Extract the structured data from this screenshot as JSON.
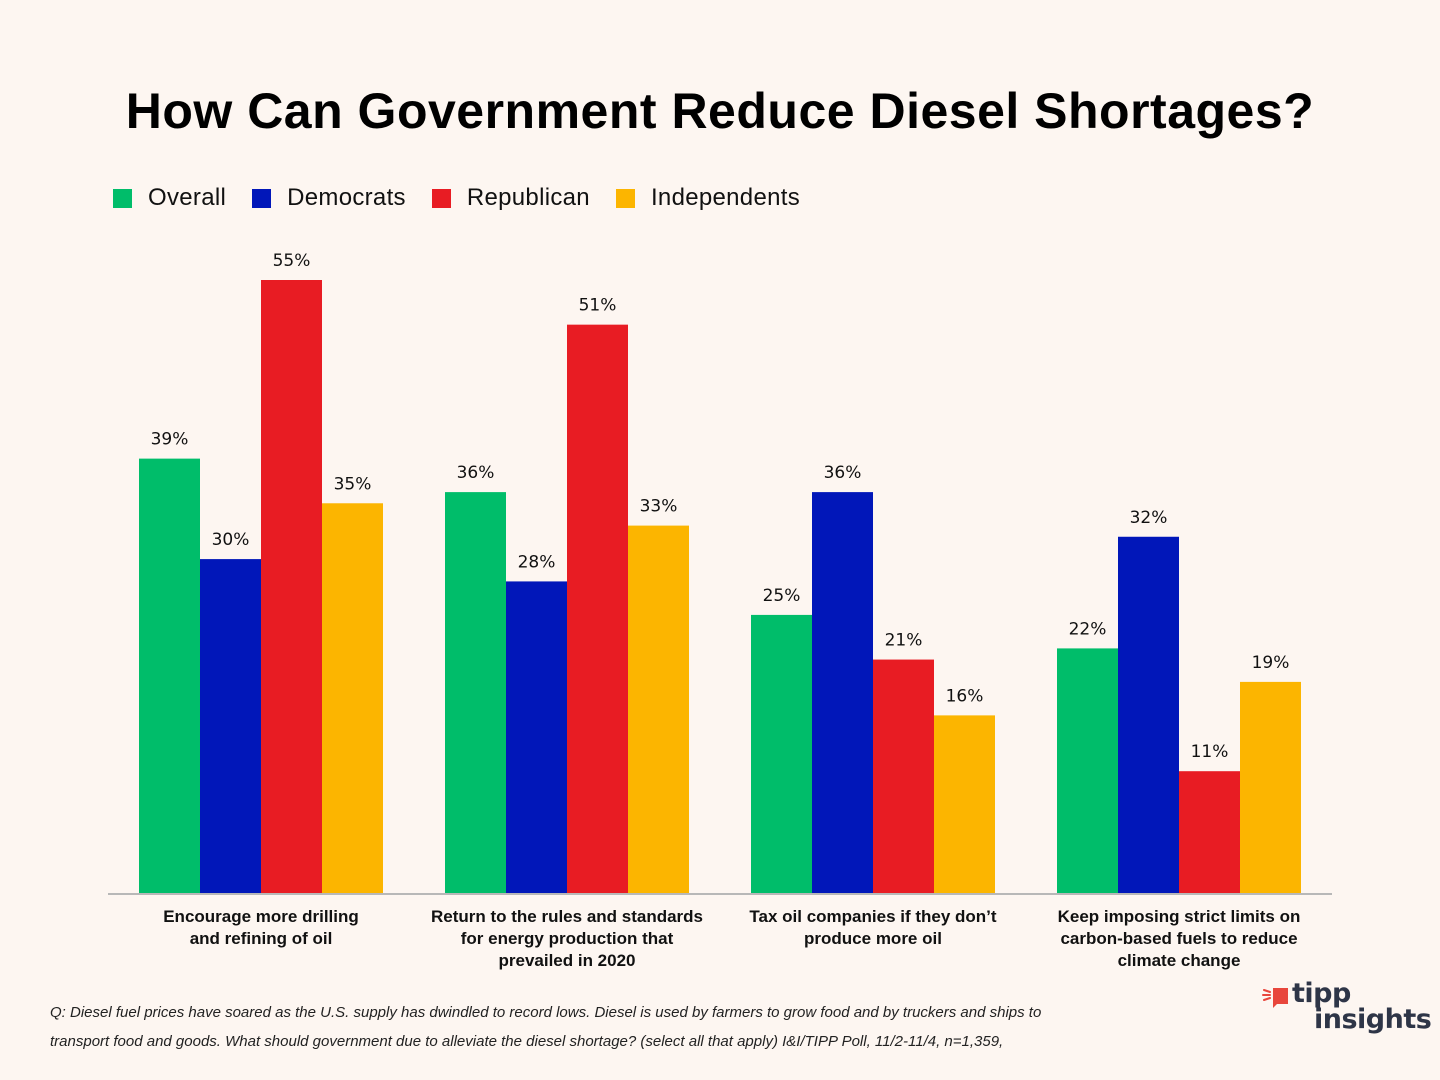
{
  "title": "How Can Government Reduce Diesel Shortages?",
  "legend": [
    {
      "label": "Overall",
      "color": "#00bd6a"
    },
    {
      "label": "Democrats",
      "color": "#0117b9"
    },
    {
      "label": "Republican",
      "color": "#e81c23"
    },
    {
      "label": "Independents",
      "color": "#fcb500"
    }
  ],
  "chart_data": {
    "type": "bar",
    "title": "How Can Government Reduce Diesel Shortages?",
    "xlabel": "",
    "ylabel": "",
    "ylim": [
      0,
      55
    ],
    "grid": false,
    "legend_position": "top-left",
    "categories": [
      "Encourage more drilling and refining of oil",
      "Return to the rules and standards for energy production that prevailed in 2020",
      "Tax oil companies if they don’t produce more oil",
      "Keep imposing strict limits on carbon-based fuels to reduce climate change"
    ],
    "category_lines": [
      [
        "Encourage more drilling",
        "and refining of oil"
      ],
      [
        "Return to the rules and standards",
        "for energy production that",
        "prevailed in 2020"
      ],
      [
        "Tax oil companies if they don’t",
        "produce more oil"
      ],
      [
        "Keep imposing strict limits on",
        "carbon-based fuels to reduce",
        "climate change"
      ]
    ],
    "series": [
      {
        "name": "Overall",
        "color": "#00bd6a",
        "values": [
          39,
          36,
          25,
          22
        ]
      },
      {
        "name": "Democrats",
        "color": "#0117b9",
        "values": [
          30,
          28,
          36,
          32
        ]
      },
      {
        "name": "Republican",
        "color": "#e81c23",
        "values": [
          55,
          51,
          21,
          11
        ]
      },
      {
        "name": "Independents",
        "color": "#fcb500",
        "values": [
          35,
          33,
          16,
          19
        ]
      }
    ],
    "value_suffix": "%"
  },
  "footnote": {
    "line1": "Q:  Diesel fuel prices have soared as the U.S. supply has dwindled to record lows. Diesel is used by farmers to grow food and by truckers and ships to",
    "line2": "transport food and goods. What should government due to alleviate the diesel shortage? (select all that apply) I&I/TIPP Poll, 11/2-11/4, n=1,359,"
  },
  "logo": {
    "line1": "tipp",
    "line2": "insights",
    "accent_color": "#e8463c",
    "text_color": "#2e3547"
  }
}
